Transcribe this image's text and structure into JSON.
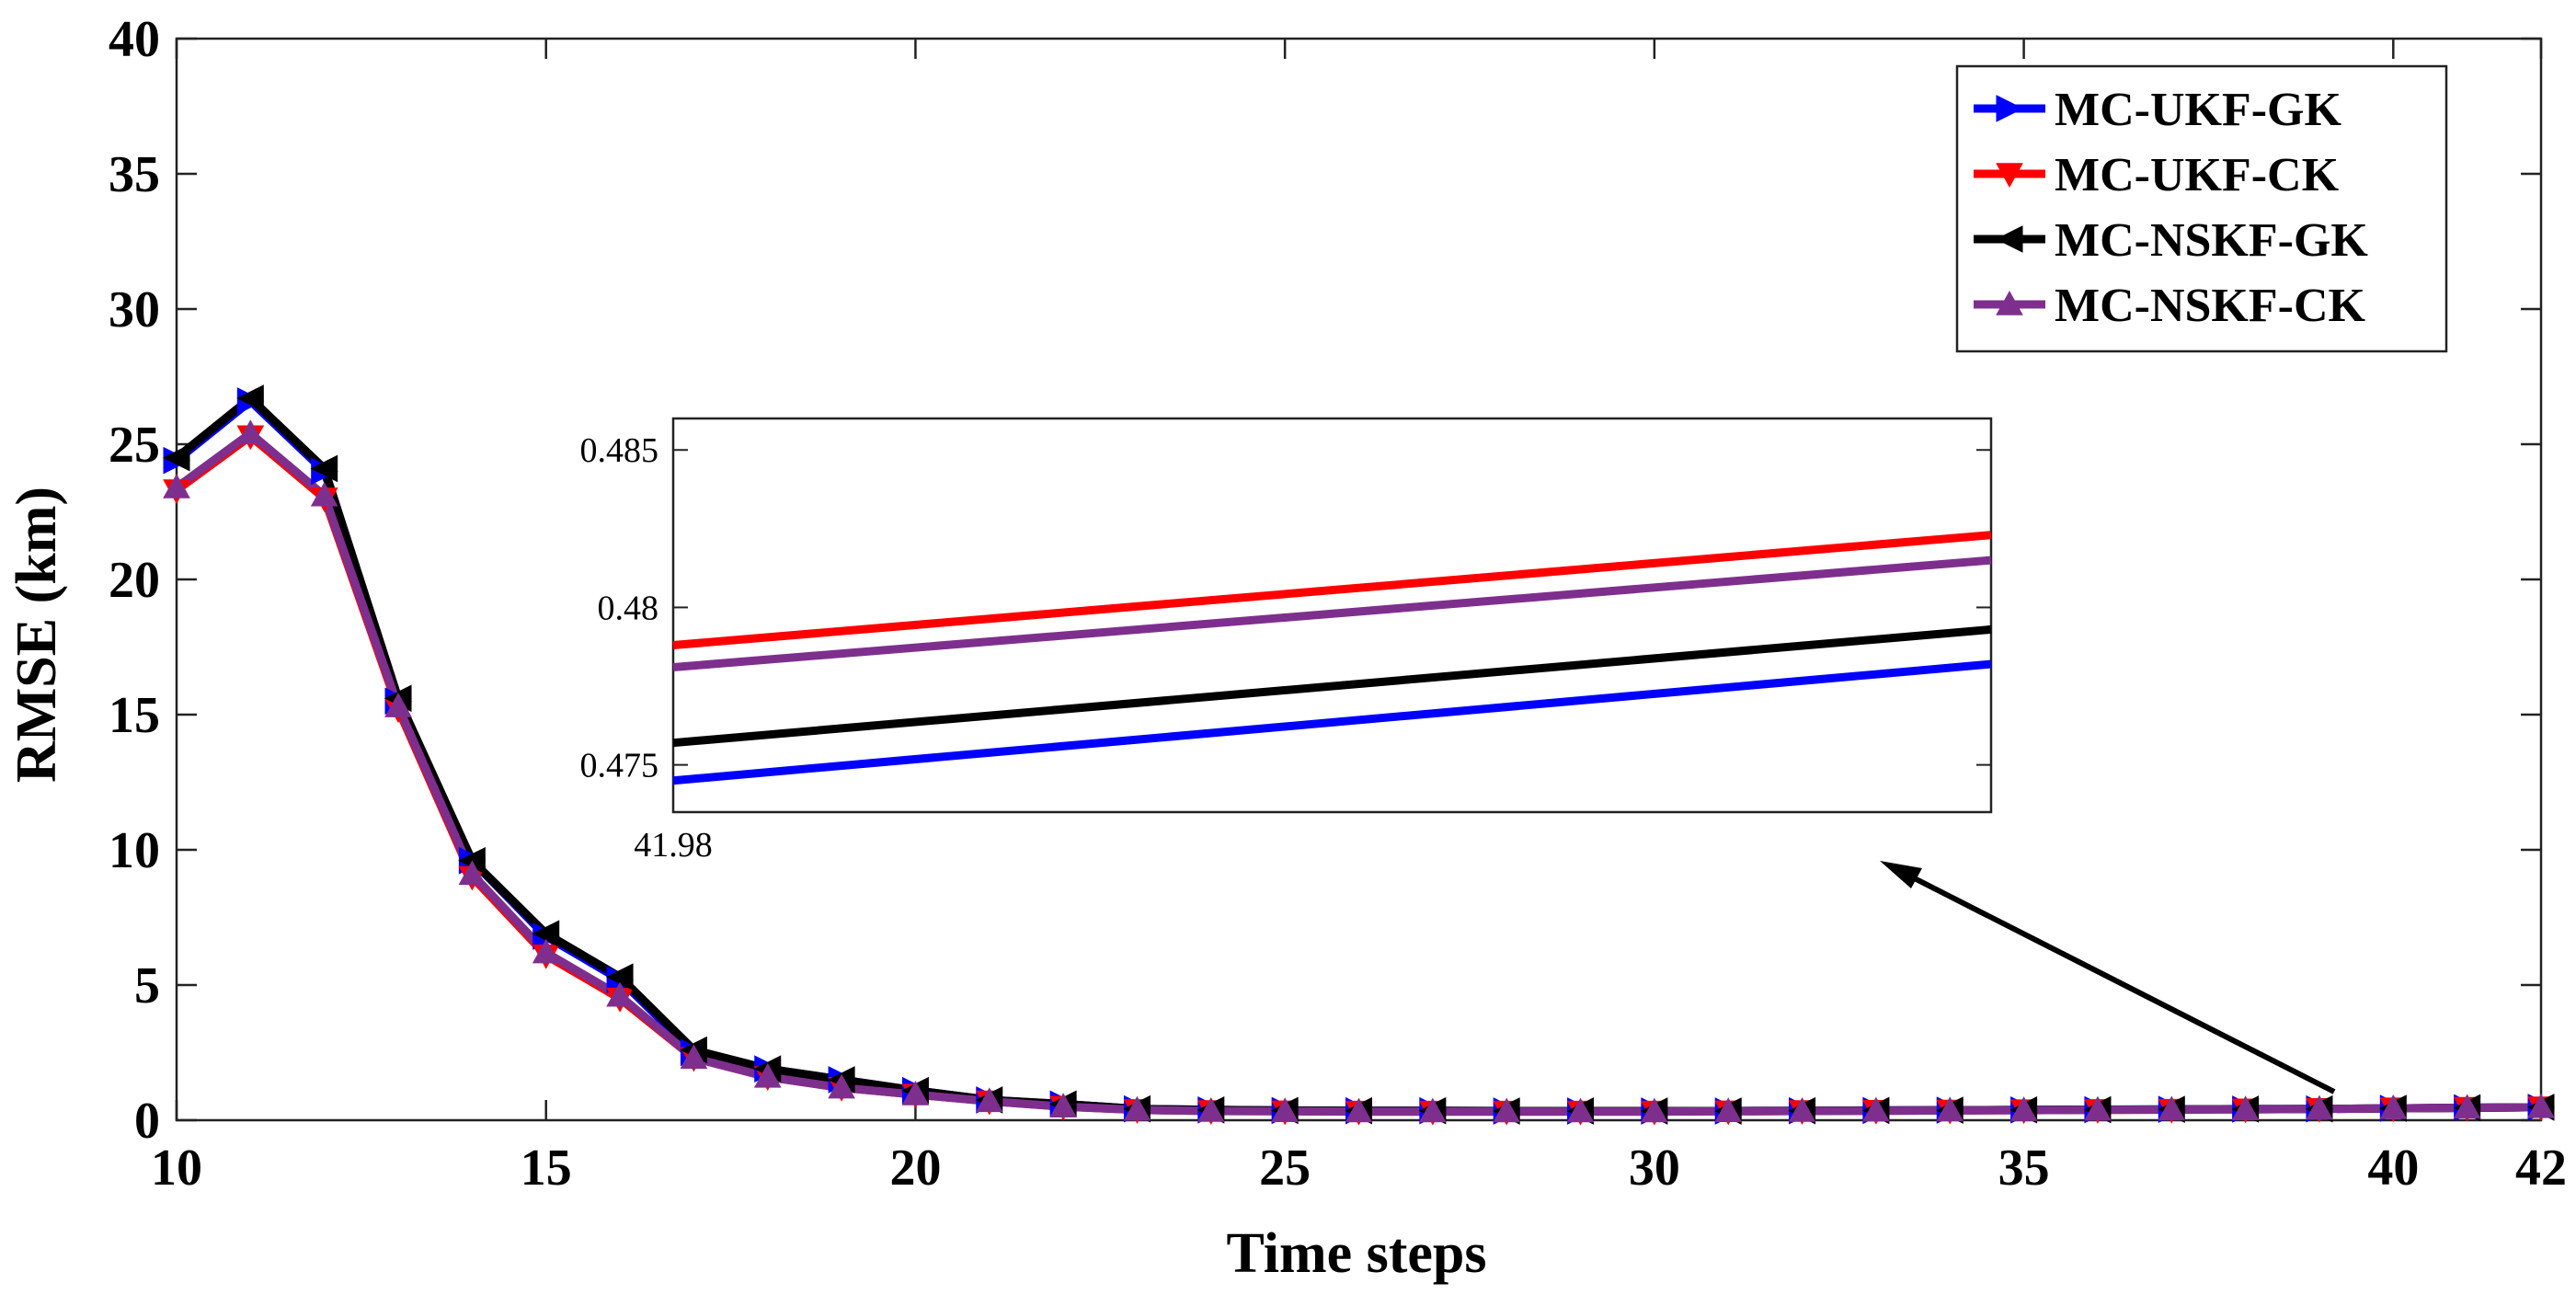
{
  "chart_data": {
    "type": "line",
    "xlabel": "Time steps",
    "ylabel": "RMSE (km)",
    "xlim": [
      10,
      42
    ],
    "ylim": [
      0,
      40
    ],
    "xticks": [
      "10",
      "15",
      "20",
      "25",
      "30",
      "35",
      "40",
      "42"
    ],
    "yticks": [
      "0",
      "5",
      "10",
      "15",
      "20",
      "25",
      "30",
      "35",
      "40"
    ],
    "legend_position": "top-right",
    "x": [
      10,
      11,
      12,
      13,
      14,
      15,
      16,
      17,
      18,
      19,
      20,
      21,
      22,
      23,
      24,
      25,
      26,
      27,
      28,
      29,
      30,
      31,
      32,
      33,
      34,
      35,
      36,
      37,
      38,
      39,
      40,
      41,
      42
    ],
    "series": [
      {
        "name": "MC-UKF-GK",
        "color": "#0000ff",
        "marker": "triangle-right",
        "values": [
          24.4,
          26.6,
          24.0,
          15.5,
          9.6,
          6.8,
          5.2,
          2.5,
          1.9,
          1.5,
          1.1,
          0.75,
          0.6,
          0.42,
          0.38,
          0.36,
          0.35,
          0.35,
          0.34,
          0.34,
          0.34,
          0.34,
          0.35,
          0.36,
          0.37,
          0.38,
          0.39,
          0.4,
          0.41,
          0.42,
          0.44,
          0.46,
          0.48
        ]
      },
      {
        "name": "MC-UKF-CK",
        "color": "#ff0000",
        "marker": "triangle-down",
        "values": [
          23.3,
          25.3,
          23.0,
          15.2,
          9.0,
          6.1,
          4.5,
          2.3,
          1.6,
          1.2,
          0.95,
          0.7,
          0.5,
          0.38,
          0.34,
          0.33,
          0.32,
          0.32,
          0.32,
          0.32,
          0.32,
          0.33,
          0.34,
          0.35,
          0.36,
          0.37,
          0.38,
          0.39,
          0.4,
          0.42,
          0.44,
          0.46,
          0.48
        ]
      },
      {
        "name": "MC-NSKF-GK",
        "color": "#000000",
        "marker": "triangle-left",
        "values": [
          24.5,
          26.7,
          24.1,
          15.6,
          9.6,
          6.9,
          5.3,
          2.6,
          1.9,
          1.5,
          1.1,
          0.75,
          0.6,
          0.42,
          0.38,
          0.36,
          0.35,
          0.35,
          0.34,
          0.34,
          0.34,
          0.34,
          0.35,
          0.36,
          0.37,
          0.38,
          0.39,
          0.4,
          0.41,
          0.42,
          0.44,
          0.46,
          0.48
        ]
      },
      {
        "name": "MC-NSKF-CK",
        "color": "#7e2f8e",
        "marker": "triangle-up",
        "values": [
          23.4,
          25.4,
          23.1,
          15.3,
          9.1,
          6.2,
          4.6,
          2.3,
          1.6,
          1.2,
          0.95,
          0.7,
          0.5,
          0.38,
          0.34,
          0.33,
          0.32,
          0.32,
          0.32,
          0.32,
          0.32,
          0.33,
          0.34,
          0.35,
          0.36,
          0.37,
          0.38,
          0.39,
          0.4,
          0.42,
          0.44,
          0.46,
          0.48
        ]
      }
    ],
    "inset": {
      "xlim": [
        41.98,
        42.0
      ],
      "ylim": [
        0.4735,
        0.486
      ],
      "xticks": [
        "41.98"
      ],
      "yticks": [
        "0.475",
        "0.48",
        "0.485"
      ],
      "yticks_values": [
        0.475,
        0.48,
        0.485
      ],
      "series_segments": [
        {
          "name": "MC-UKF-GK",
          "color": "#0000ff",
          "start": 0.4745,
          "end": 0.4782
        },
        {
          "name": "MC-UKF-CK",
          "color": "#ff0000",
          "start": 0.4788,
          "end": 0.4823
        },
        {
          "name": "MC-NSKF-GK",
          "color": "#000000",
          "start": 0.4757,
          "end": 0.4793
        },
        {
          "name": "MC-NSKF-CK",
          "color": "#7e2f8e",
          "start": 0.4781,
          "end": 0.4815
        }
      ]
    }
  }
}
